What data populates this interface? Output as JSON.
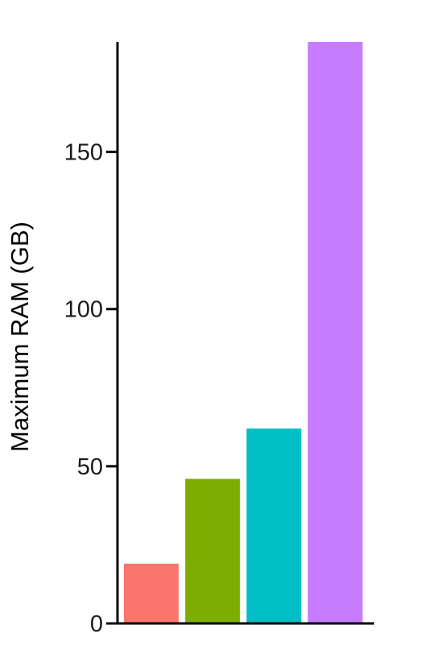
{
  "chart_data": {
    "type": "bar",
    "title": "",
    "xlabel": "",
    "ylabel": "Maximum RAM (GB)",
    "categories": [
      "",
      "",
      "",
      ""
    ],
    "values": [
      19,
      46,
      62,
      185
    ],
    "colors": [
      "#F8766D",
      "#7CAE00",
      "#00BFC4",
      "#C77CFF"
    ],
    "ylim": [
      0,
      185
    ],
    "yticks": [
      0,
      50,
      100,
      150
    ],
    "ytick_labels": [
      "0",
      "50",
      "100",
      "150"
    ],
    "grid": false,
    "legend": "none"
  }
}
